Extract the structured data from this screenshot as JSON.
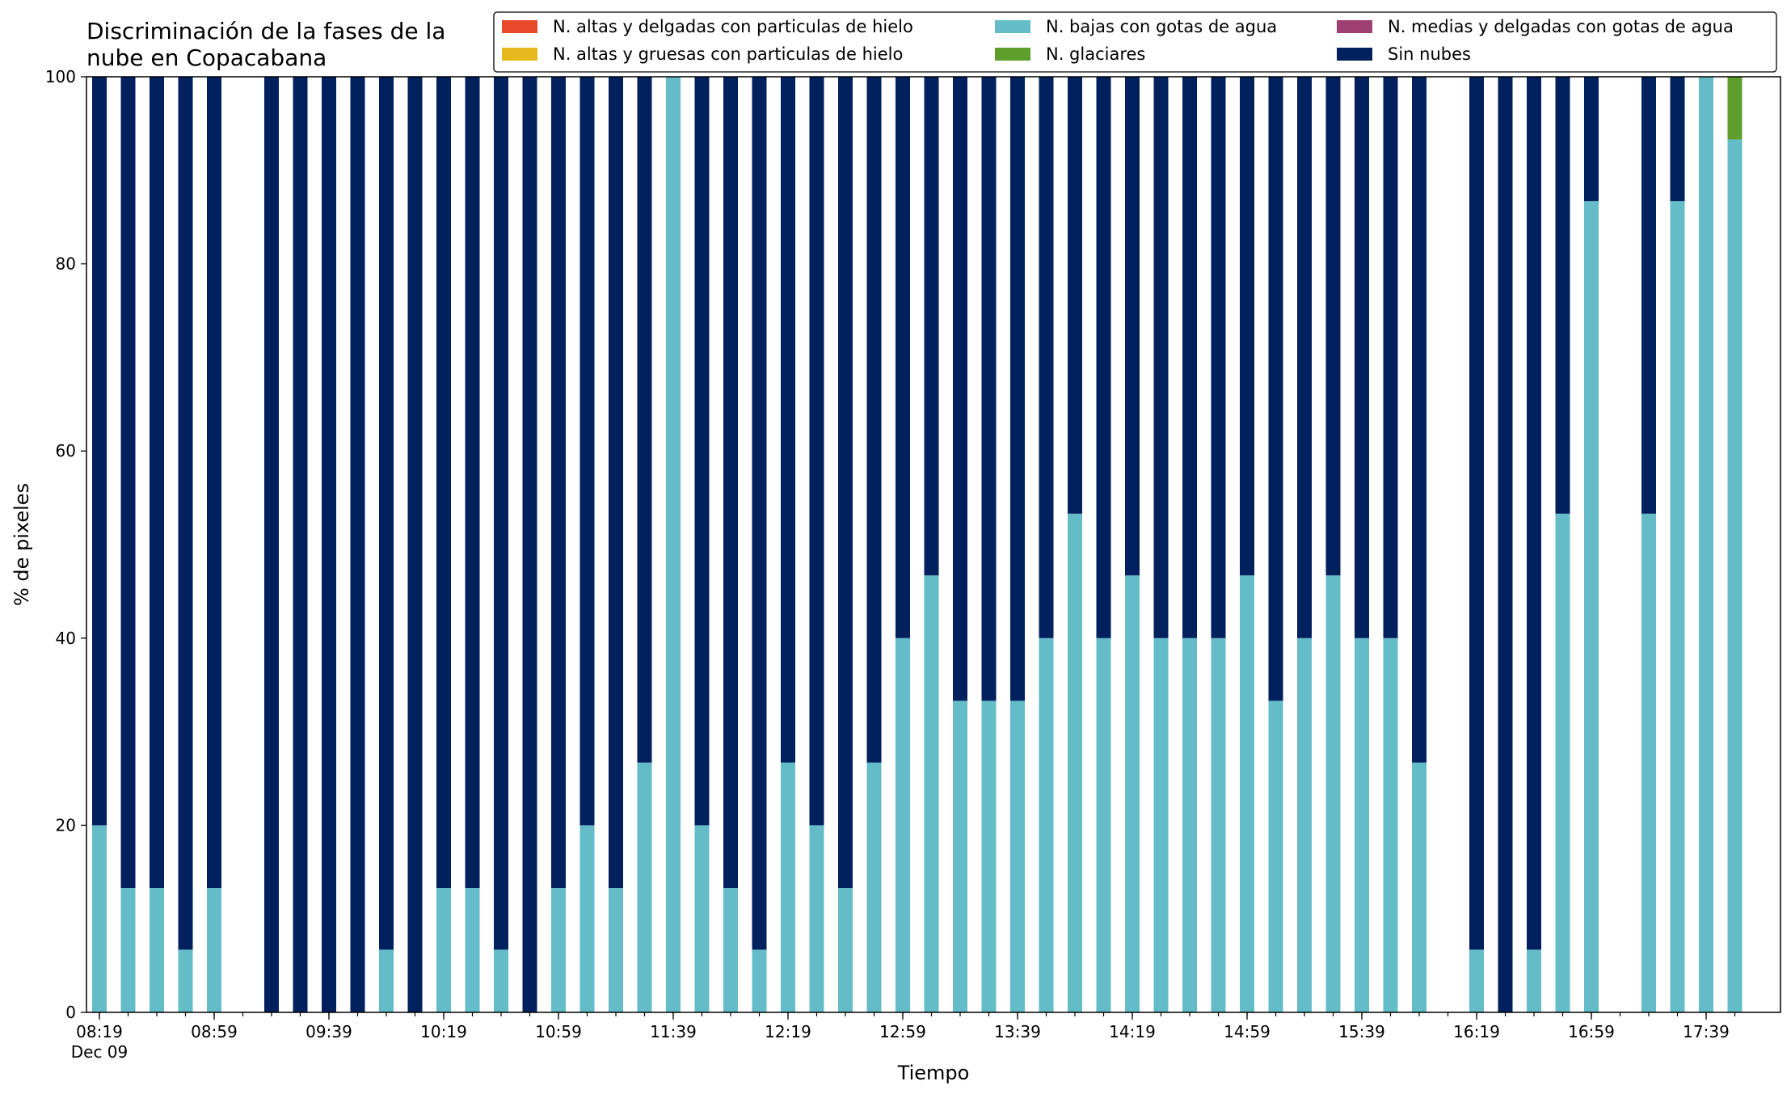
{
  "chart_data": {
    "type": "bar",
    "stacked": true,
    "title": "Discriminación de la fases de la\nnube en Copacabana",
    "xlabel": "Tiempo",
    "ylabel": "% de pixeles",
    "ylim": [
      0,
      100
    ],
    "yticks": [
      0,
      20,
      40,
      60,
      80,
      100
    ],
    "grid": false,
    "legend_placement": "top-right",
    "legend": [
      {
        "name": "N. altas y delgadas con particulas de hielo",
        "color": "#E8492A"
      },
      {
        "name": "N. altas y gruesas con particulas de hielo",
        "color": "#E5B81D"
      },
      {
        "name": "N. bajas con gotas de agua",
        "color": "#63BCC8"
      },
      {
        "name": "N. glaciares",
        "color": "#5E9E2D"
      },
      {
        "name": "N. medias y delgadas con gotas de agua",
        "color": "#A03F74"
      },
      {
        "name": "Sin nubes",
        "color": "#00205E"
      }
    ],
    "x_tick_labels": [
      "08:19",
      "08:59",
      "09:39",
      "10:19",
      "10:59",
      "11:39",
      "12:19",
      "12:59",
      "13:39",
      "14:19",
      "14:59",
      "15:39",
      "16:19",
      "16:59",
      "17:39"
    ],
    "x_tick_sublabel": "Dec 09",
    "categories": [
      "08:19",
      "08:29",
      "08:39",
      "08:49",
      "08:59",
      "09:09",
      "09:19",
      "09:29",
      "09:39",
      "09:49",
      "09:59",
      "10:09",
      "10:19",
      "10:29",
      "10:39",
      "10:49",
      "10:59",
      "11:09",
      "11:19",
      "11:29",
      "11:39",
      "11:49",
      "11:59",
      "12:09",
      "12:19",
      "12:29",
      "12:39",
      "12:49",
      "12:59",
      "13:09",
      "13:19",
      "13:29",
      "13:39",
      "13:49",
      "13:59",
      "14:09",
      "14:19",
      "14:29",
      "14:39",
      "14:49",
      "14:59",
      "15:09",
      "15:19",
      "15:29",
      "15:39",
      "15:49",
      "15:59",
      "16:09",
      "16:19",
      "16:29",
      "16:39",
      "16:49",
      "16:59",
      "17:09",
      "17:19",
      "17:29",
      "17:39",
      "17:49"
    ],
    "series": [
      {
        "name": "N. altas y delgadas con particulas de hielo",
        "color": "#E8492A",
        "values": [
          0,
          0,
          0,
          0,
          0,
          null,
          0,
          0,
          0,
          0,
          0,
          0,
          0,
          0,
          0,
          0,
          0,
          0,
          0,
          0,
          0,
          0,
          0,
          0,
          0,
          0,
          0,
          0,
          0,
          0,
          0,
          0,
          0,
          0,
          0,
          0,
          0,
          0,
          0,
          0,
          0,
          0,
          0,
          0,
          0,
          0,
          0,
          null,
          0,
          0,
          0,
          0,
          0,
          null,
          0,
          0,
          0,
          0
        ]
      },
      {
        "name": "N. altas y gruesas con particulas de hielo",
        "color": "#E5B81D",
        "values": [
          0,
          0,
          0,
          0,
          0,
          null,
          0,
          0,
          0,
          0,
          0,
          0,
          0,
          0,
          0,
          0,
          0,
          0,
          0,
          0,
          0,
          0,
          0,
          0,
          0,
          0,
          0,
          0,
          0,
          0,
          0,
          0,
          0,
          0,
          0,
          0,
          0,
          0,
          0,
          0,
          0,
          0,
          0,
          0,
          0,
          0,
          0,
          null,
          0,
          0,
          0,
          0,
          0,
          null,
          0,
          0,
          0,
          0
        ]
      },
      {
        "name": "N. bajas con gotas de agua",
        "color": "#63BCC8",
        "values": [
          20,
          13.3,
          13.3,
          6.7,
          13.3,
          null,
          0,
          0,
          0,
          0,
          6.7,
          0,
          13.3,
          13.3,
          6.7,
          0,
          13.3,
          20,
          13.3,
          26.7,
          100,
          20,
          13.3,
          6.7,
          26.7,
          20,
          13.3,
          26.7,
          40,
          46.7,
          33.3,
          33.3,
          33.3,
          40,
          53.3,
          40,
          46.7,
          40,
          40,
          40,
          46.7,
          33.3,
          40,
          46.7,
          40,
          40,
          26.7,
          null,
          6.7,
          0,
          6.7,
          53.3,
          86.7,
          null,
          53.3,
          86.7,
          100,
          93.3
        ]
      },
      {
        "name": "N. glaciares",
        "color": "#5E9E2D",
        "values": [
          0,
          0,
          0,
          0,
          0,
          null,
          0,
          0,
          0,
          0,
          0,
          0,
          0,
          0,
          0,
          0,
          0,
          0,
          0,
          0,
          0,
          0,
          0,
          0,
          0,
          0,
          0,
          0,
          0,
          0,
          0,
          0,
          0,
          0,
          0,
          0,
          0,
          0,
          0,
          0,
          0,
          0,
          0,
          0,
          0,
          0,
          0,
          null,
          0,
          0,
          0,
          0,
          0,
          null,
          0,
          0,
          0,
          6.7
        ]
      },
      {
        "name": "N. medias y delgadas con gotas de agua",
        "color": "#A03F74",
        "values": [
          0,
          0,
          0,
          0,
          0,
          null,
          0,
          0,
          0,
          0,
          0,
          0,
          0,
          0,
          0,
          0,
          0,
          0,
          0,
          0,
          0,
          0,
          0,
          0,
          0,
          0,
          0,
          0,
          0,
          0,
          0,
          0,
          0,
          0,
          0,
          0,
          0,
          0,
          0,
          0,
          0,
          0,
          0,
          0,
          0,
          0,
          0,
          null,
          0,
          0,
          0,
          0,
          0,
          null,
          0,
          0,
          0,
          0
        ]
      },
      {
        "name": "Sin nubes",
        "color": "#00205E",
        "values": [
          80,
          86.7,
          86.7,
          93.3,
          86.7,
          null,
          100,
          100,
          100,
          100,
          93.3,
          100,
          86.7,
          86.7,
          93.3,
          100,
          86.7,
          80,
          86.7,
          73.3,
          0,
          80,
          86.7,
          93.3,
          73.3,
          80,
          86.7,
          73.3,
          60,
          53.3,
          66.7,
          66.7,
          66.7,
          60,
          46.7,
          60,
          53.3,
          60,
          60,
          60,
          53.3,
          66.7,
          60,
          53.3,
          60,
          60,
          73.3,
          null,
          93.3,
          100,
          93.3,
          46.7,
          13.3,
          null,
          46.7,
          13.3,
          0,
          0
        ]
      }
    ]
  }
}
